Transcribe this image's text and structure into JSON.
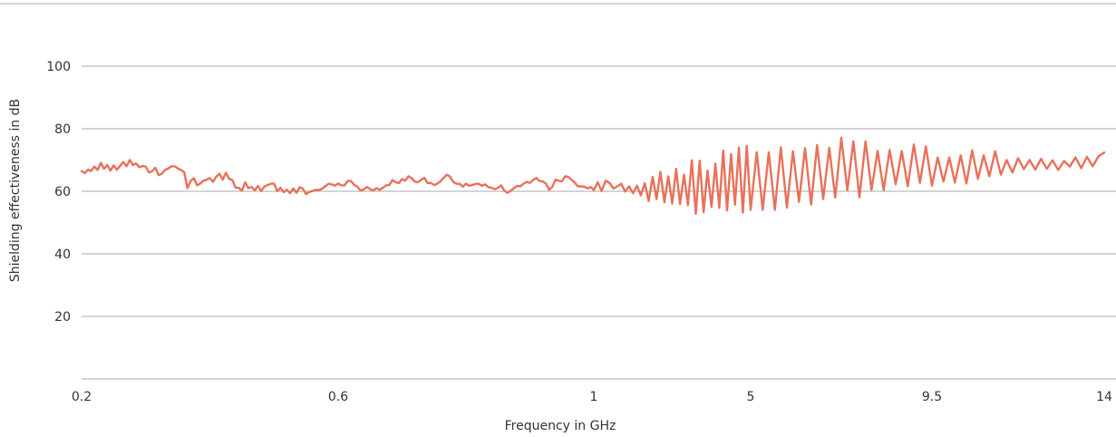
{
  "chart_data": {
    "type": "line",
    "title": "",
    "xlabel": "Frequency in GHz",
    "ylabel": "Shielding effectiveness in dB",
    "x_tick_labels": [
      "0.2",
      "0.6",
      "1",
      "5",
      "9.5",
      "14"
    ],
    "y_ticks": [
      20,
      40,
      60,
      80,
      100
    ],
    "y_tick_labels": [
      "20",
      "40",
      "60",
      "80",
      "100"
    ],
    "ylim": [
      0,
      120
    ],
    "grid": "horizontal",
    "legend": "none",
    "line_color": "#e8715a",
    "grid_color": "#a9a9a9",
    "x_scale": "piecewise (equal-width segments between tick labels)",
    "series": [
      {
        "points": [
          [
            0.2,
            66.5
          ],
          [
            0.205,
            65.8
          ],
          [
            0.21,
            66.9
          ],
          [
            0.215,
            66.5
          ],
          [
            0.22,
            67.9
          ],
          [
            0.225,
            66.8
          ],
          [
            0.23,
            69.1
          ],
          [
            0.235,
            67.2
          ],
          [
            0.24,
            68.4
          ],
          [
            0.245,
            66.6
          ],
          [
            0.25,
            68.3
          ],
          [
            0.255,
            66.9
          ],
          [
            0.26,
            68.1
          ],
          [
            0.265,
            69.4
          ],
          [
            0.27,
            68.0
          ],
          [
            0.275,
            70.0
          ],
          [
            0.28,
            68.4
          ],
          [
            0.285,
            68.9
          ],
          [
            0.29,
            67.7
          ],
          [
            0.295,
            68.1
          ],
          [
            0.3,
            67.9
          ],
          [
            0.305,
            66.0
          ],
          [
            0.31,
            66.4
          ],
          [
            0.315,
            67.5
          ],
          [
            0.32,
            65.2
          ],
          [
            0.325,
            65.6
          ],
          [
            0.33,
            66.8
          ],
          [
            0.335,
            67.3
          ],
          [
            0.34,
            68.0
          ],
          [
            0.345,
            68.0
          ],
          [
            0.35,
            67.3
          ],
          [
            0.355,
            66.8
          ],
          [
            0.36,
            66.1
          ],
          [
            0.365,
            61.0
          ],
          [
            0.37,
            63.3
          ],
          [
            0.375,
            64.2
          ],
          [
            0.38,
            61.9
          ],
          [
            0.385,
            62.5
          ],
          [
            0.39,
            63.4
          ],
          [
            0.395,
            63.7
          ],
          [
            0.4,
            64.2
          ],
          [
            0.405,
            63.0
          ],
          [
            0.41,
            64.7
          ],
          [
            0.415,
            65.6
          ],
          [
            0.42,
            63.7
          ],
          [
            0.425,
            65.9
          ],
          [
            0.43,
            64.0
          ],
          [
            0.435,
            63.6
          ],
          [
            0.44,
            61.2
          ],
          [
            0.445,
            61.1
          ],
          [
            0.45,
            60.2
          ],
          [
            0.455,
            62.9
          ],
          [
            0.46,
            61.0
          ],
          [
            0.465,
            61.4
          ],
          [
            0.47,
            60.3
          ],
          [
            0.475,
            61.7
          ],
          [
            0.48,
            60.1
          ],
          [
            0.485,
            61.5
          ],
          [
            0.49,
            62.0
          ],
          [
            0.495,
            62.4
          ],
          [
            0.5,
            62.5
          ],
          [
            0.505,
            60.0
          ],
          [
            0.51,
            61.1
          ],
          [
            0.515,
            59.7
          ],
          [
            0.52,
            60.5
          ],
          [
            0.525,
            59.4
          ],
          [
            0.53,
            60.9
          ],
          [
            0.535,
            59.5
          ],
          [
            0.54,
            61.3
          ],
          [
            0.545,
            60.8
          ],
          [
            0.55,
            59.1
          ],
          [
            0.555,
            59.8
          ],
          [
            0.56,
            60.1
          ],
          [
            0.565,
            60.5
          ],
          [
            0.57,
            60.4
          ],
          [
            0.575,
            60.8
          ],
          [
            0.58,
            61.6
          ],
          [
            0.585,
            62.4
          ],
          [
            0.59,
            62.2
          ],
          [
            0.595,
            61.8
          ],
          [
            0.6,
            62.5
          ],
          [
            0.605,
            61.9
          ],
          [
            0.61,
            61.9
          ],
          [
            0.615,
            63.3
          ],
          [
            0.62,
            63.3
          ],
          [
            0.625,
            62.1
          ],
          [
            0.63,
            61.5
          ],
          [
            0.635,
            60.2
          ],
          [
            0.64,
            60.6
          ],
          [
            0.645,
            61.4
          ],
          [
            0.65,
            60.7
          ],
          [
            0.655,
            60.3
          ],
          [
            0.66,
            61.0
          ],
          [
            0.665,
            60.5
          ],
          [
            0.67,
            61.1
          ],
          [
            0.675,
            61.9
          ],
          [
            0.68,
            62.0
          ],
          [
            0.685,
            63.6
          ],
          [
            0.69,
            62.9
          ],
          [
            0.695,
            62.6
          ],
          [
            0.7,
            63.9
          ],
          [
            0.705,
            63.4
          ],
          [
            0.71,
            64.8
          ],
          [
            0.715,
            64.2
          ],
          [
            0.72,
            63.1
          ],
          [
            0.725,
            62.9
          ],
          [
            0.73,
            63.7
          ],
          [
            0.735,
            64.3
          ],
          [
            0.74,
            62.6
          ],
          [
            0.745,
            62.7
          ],
          [
            0.75,
            62.0
          ],
          [
            0.755,
            62.4
          ],
          [
            0.76,
            63.2
          ],
          [
            0.765,
            64.3
          ],
          [
            0.77,
            65.3
          ],
          [
            0.775,
            64.7
          ],
          [
            0.78,
            63.0
          ],
          [
            0.785,
            62.4
          ],
          [
            0.79,
            62.4
          ],
          [
            0.795,
            61.5
          ],
          [
            0.8,
            62.4
          ],
          [
            0.805,
            61.8
          ],
          [
            0.81,
            62.0
          ],
          [
            0.815,
            62.4
          ],
          [
            0.82,
            62.4
          ],
          [
            0.825,
            61.8
          ],
          [
            0.83,
            62.2
          ],
          [
            0.835,
            61.3
          ],
          [
            0.84,
            61.1
          ],
          [
            0.845,
            60.7
          ],
          [
            0.85,
            61.1
          ],
          [
            0.855,
            61.9
          ],
          [
            0.86,
            60.2
          ],
          [
            0.865,
            59.5
          ],
          [
            0.87,
            60.2
          ],
          [
            0.875,
            61.0
          ],
          [
            0.88,
            61.7
          ],
          [
            0.885,
            61.6
          ],
          [
            0.89,
            62.4
          ],
          [
            0.895,
            63.0
          ],
          [
            0.9,
            62.7
          ],
          [
            0.905,
            63.6
          ],
          [
            0.91,
            64.3
          ],
          [
            0.915,
            63.3
          ],
          [
            0.92,
            63.2
          ],
          [
            0.925,
            62.5
          ],
          [
            0.93,
            60.5
          ],
          [
            0.935,
            61.4
          ],
          [
            0.94,
            63.7
          ],
          [
            0.945,
            63.4
          ],
          [
            0.95,
            63.2
          ],
          [
            0.955,
            64.8
          ],
          [
            0.96,
            64.6
          ],
          [
            0.965,
            63.7
          ],
          [
            0.97,
            62.8
          ],
          [
            0.975,
            61.6
          ],
          [
            0.98,
            61.6
          ],
          [
            0.985,
            61.5
          ],
          [
            0.99,
            60.9
          ],
          [
            0.995,
            61.4
          ],
          [
            1.0,
            60.4
          ],
          [
            1.1,
            62.9
          ],
          [
            1.2,
            60.1
          ],
          [
            1.3,
            63.4
          ],
          [
            1.4,
            62.7
          ],
          [
            1.5,
            60.9
          ],
          [
            1.6,
            61.6
          ],
          [
            1.7,
            62.4
          ],
          [
            1.8,
            59.9
          ],
          [
            1.9,
            61.6
          ],
          [
            2.0,
            59.4
          ],
          [
            2.1,
            61.8
          ],
          [
            2.2,
            58.7
          ],
          [
            2.3,
            62.6
          ],
          [
            2.4,
            56.9
          ],
          [
            2.5,
            64.6
          ],
          [
            2.6,
            57.5
          ],
          [
            2.7,
            66.2
          ],
          [
            2.8,
            56.5
          ],
          [
            2.9,
            64.8
          ],
          [
            3.0,
            56.1
          ],
          [
            3.1,
            67.2
          ],
          [
            3.2,
            55.9
          ],
          [
            3.3,
            65.3
          ],
          [
            3.4,
            55.6
          ],
          [
            3.5,
            69.9
          ],
          [
            3.6,
            52.8
          ],
          [
            3.7,
            69.8
          ],
          [
            3.8,
            53.3
          ],
          [
            3.9,
            66.6
          ],
          [
            4.0,
            55.0
          ],
          [
            4.1,
            68.8
          ],
          [
            4.2,
            54.7
          ],
          [
            4.3,
            73.0
          ],
          [
            4.4,
            53.9
          ],
          [
            4.5,
            71.9
          ],
          [
            4.6,
            55.7
          ],
          [
            4.7,
            74.0
          ],
          [
            4.8,
            53.2
          ],
          [
            4.9,
            74.5
          ],
          [
            5.0,
            54.1
          ],
          [
            5.15,
            72.5
          ],
          [
            5.3,
            54.1
          ],
          [
            5.45,
            72.5
          ],
          [
            5.6,
            54.1
          ],
          [
            5.75,
            74.1
          ],
          [
            5.9,
            54.8
          ],
          [
            6.05,
            72.8
          ],
          [
            6.2,
            56.6
          ],
          [
            6.35,
            73.8
          ],
          [
            6.5,
            55.8
          ],
          [
            6.65,
            74.8
          ],
          [
            6.8,
            57.5
          ],
          [
            6.95,
            73.9
          ],
          [
            7.1,
            58.0
          ],
          [
            7.25,
            77.1
          ],
          [
            7.4,
            60.3
          ],
          [
            7.55,
            76.0
          ],
          [
            7.7,
            58.1
          ],
          [
            7.85,
            76.0
          ],
          [
            8.0,
            60.5
          ],
          [
            8.15,
            72.9
          ],
          [
            8.3,
            60.4
          ],
          [
            8.45,
            73.2
          ],
          [
            8.6,
            62.3
          ],
          [
            8.75,
            72.9
          ],
          [
            8.9,
            61.6
          ],
          [
            9.05,
            75.0
          ],
          [
            9.2,
            62.7
          ],
          [
            9.35,
            74.4
          ],
          [
            9.5,
            61.8
          ],
          [
            9.65,
            70.8
          ],
          [
            9.8,
            63.1
          ],
          [
            9.95,
            70.8
          ],
          [
            10.1,
            62.8
          ],
          [
            10.25,
            71.5
          ],
          [
            10.4,
            62.5
          ],
          [
            10.55,
            73.1
          ],
          [
            10.7,
            64.0
          ],
          [
            10.85,
            71.5
          ],
          [
            11.0,
            64.8
          ],
          [
            11.15,
            72.8
          ],
          [
            11.3,
            65.3
          ],
          [
            11.45,
            70.0
          ],
          [
            11.6,
            66.0
          ],
          [
            11.75,
            70.6
          ],
          [
            11.9,
            67.1
          ],
          [
            12.05,
            70.0
          ],
          [
            12.2,
            66.9
          ],
          [
            12.35,
            70.4
          ],
          [
            12.5,
            67.2
          ],
          [
            12.65,
            69.9
          ],
          [
            12.8,
            66.8
          ],
          [
            12.95,
            69.7
          ],
          [
            13.1,
            67.9
          ],
          [
            13.25,
            70.8
          ],
          [
            13.4,
            67.4
          ],
          [
            13.55,
            71.0
          ],
          [
            13.7,
            68.0
          ],
          [
            13.85,
            71.2
          ],
          [
            14.0,
            72.4
          ]
        ]
      }
    ]
  }
}
